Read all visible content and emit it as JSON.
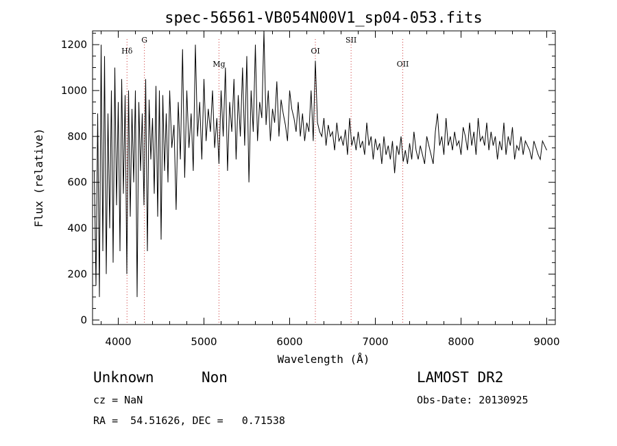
{
  "chart_data": {
    "type": "line",
    "title": "spec-56561-VB054N00V1_sp04-053.fits",
    "xlabel": "Wavelength (Å)",
    "ylabel": "Flux (relative)",
    "xlim": [
      3700,
      9100
    ],
    "ylim": [
      -20,
      1260
    ],
    "xticks": [
      4000,
      5000,
      6000,
      7000,
      8000,
      9000
    ],
    "yticks": [
      0,
      200,
      400,
      600,
      800,
      1000,
      1200
    ],
    "grid": false,
    "line_color": "#000000",
    "marker_color": "#cc3333",
    "spectral_lines": [
      {
        "name": "Hδ",
        "wavelength": 4102
      },
      {
        "name": "G",
        "wavelength": 4305
      },
      {
        "name": "Mg",
        "wavelength": 5175
      },
      {
        "name": "OI",
        "wavelength": 6300
      },
      {
        "name": "SII",
        "wavelength": 6717
      },
      {
        "name": "OII",
        "wavelength": 7320
      }
    ],
    "series": [
      {
        "x": [
          3720,
          3740,
          3760,
          3780,
          3800,
          3820,
          3840,
          3860,
          3880,
          3900,
          3920,
          3940,
          3960,
          3980,
          4000,
          4020,
          4040,
          4060,
          4080,
          4100,
          4120,
          4140,
          4160,
          4180,
          4200,
          4220,
          4240,
          4260,
          4280,
          4300,
          4320,
          4340,
          4360,
          4380,
          4400,
          4420,
          4440,
          4460,
          4480,
          4500,
          4520,
          4540,
          4560,
          4580,
          4600,
          4625,
          4650,
          4675,
          4700,
          4725,
          4750,
          4775,
          4800,
          4825,
          4850,
          4875,
          4900,
          4925,
          4950,
          4975,
          5000,
          5025,
          5050,
          5075,
          5100,
          5125,
          5150,
          5175,
          5200,
          5225,
          5250,
          5275,
          5300,
          5325,
          5350,
          5375,
          5400,
          5425,
          5450,
          5475,
          5500,
          5525,
          5550,
          5575,
          5600,
          5625,
          5650,
          5675,
          5700,
          5725,
          5750,
          5775,
          5800,
          5825,
          5850,
          5875,
          5900,
          5925,
          5950,
          5975,
          6000,
          6025,
          6050,
          6075,
          6100,
          6125,
          6150,
          6175,
          6200,
          6225,
          6250,
          6275,
          6300,
          6325,
          6350,
          6375,
          6400,
          6425,
          6450,
          6475,
          6500,
          6525,
          6550,
          6575,
          6600,
          6625,
          6650,
          6675,
          6700,
          6725,
          6750,
          6775,
          6800,
          6825,
          6850,
          6875,
          6900,
          6925,
          6950,
          6975,
          7000,
          7025,
          7050,
          7075,
          7100,
          7125,
          7150,
          7175,
          7200,
          7225,
          7250,
          7275,
          7300,
          7325,
          7350,
          7375,
          7400,
          7425,
          7450,
          7475,
          7500,
          7525,
          7550,
          7575,
          7600,
          7625,
          7650,
          7675,
          7700,
          7725,
          7750,
          7775,
          7800,
          7825,
          7850,
          7875,
          7900,
          7925,
          7950,
          7975,
          8000,
          8025,
          8050,
          8075,
          8100,
          8125,
          8150,
          8175,
          8200,
          8225,
          8250,
          8275,
          8300,
          8325,
          8350,
          8375,
          8400,
          8425,
          8450,
          8475,
          8500,
          8525,
          8550,
          8575,
          8600,
          8625,
          8650,
          8675,
          8700,
          8725,
          8750,
          8775,
          8800,
          8825,
          8850,
          8875,
          8900,
          8925,
          8950,
          8975,
          9000
        ],
        "y": [
          650,
          150,
          900,
          100,
          1200,
          300,
          1150,
          200,
          900,
          400,
          1000,
          250,
          1100,
          500,
          950,
          300,
          1050,
          550,
          980,
          200,
          1000,
          450,
          920,
          600,
          1000,
          100,
          950,
          650,
          900,
          500,
          1050,
          300,
          960,
          700,
          880,
          550,
          1020,
          450,
          1000,
          350,
          980,
          650,
          900,
          600,
          1000,
          750,
          850,
          480,
          950,
          700,
          1180,
          620,
          1000,
          750,
          900,
          650,
          1200,
          800,
          950,
          700,
          1050,
          780,
          920,
          820,
          1000,
          750,
          880,
          680,
          1000,
          800,
          1100,
          650,
          950,
          820,
          1050,
          700,
          980,
          800,
          1100,
          760,
          1150,
          600,
          1000,
          820,
          1200,
          780,
          950,
          880,
          1270,
          850,
          1000,
          780,
          920,
          860,
          1040,
          800,
          960,
          900,
          850,
          780,
          1000,
          920,
          880,
          820,
          950,
          800,
          900,
          780,
          860,
          820,
          1000,
          780,
          1130,
          860,
          820,
          800,
          880,
          760,
          850,
          800,
          820,
          740,
          860,
          780,
          800,
          760,
          830,
          720,
          880,
          760,
          800,
          740,
          820,
          750,
          780,
          720,
          860,
          760,
          800,
          700,
          790,
          740,
          770,
          680,
          800,
          720,
          760,
          700,
          780,
          640,
          760,
          720,
          800,
          690,
          740,
          680,
          770,
          700,
          820,
          740,
          700,
          760,
          720,
          680,
          800,
          760,
          720,
          680,
          820,
          900,
          760,
          800,
          720,
          880,
          760,
          800,
          740,
          820,
          760,
          780,
          720,
          840,
          800,
          740,
          860,
          760,
          820,
          720,
          880,
          780,
          800,
          760,
          860,
          740,
          820,
          760,
          800,
          700,
          780,
          740,
          860,
          720,
          800,
          760,
          840,
          700,
          760,
          740,
          800,
          720,
          780,
          760,
          740,
          700,
          780,
          750,
          720,
          700,
          780,
          760,
          740
        ]
      }
    ]
  },
  "footer": {
    "object_class": "Unknown",
    "object_subclass": "Non",
    "survey": "LAMOST DR2",
    "cz": "cz = NaN",
    "obs_date": "Obs-Date: 20130925",
    "coords": "RA =  54.51626, DEC =   0.71538"
  }
}
